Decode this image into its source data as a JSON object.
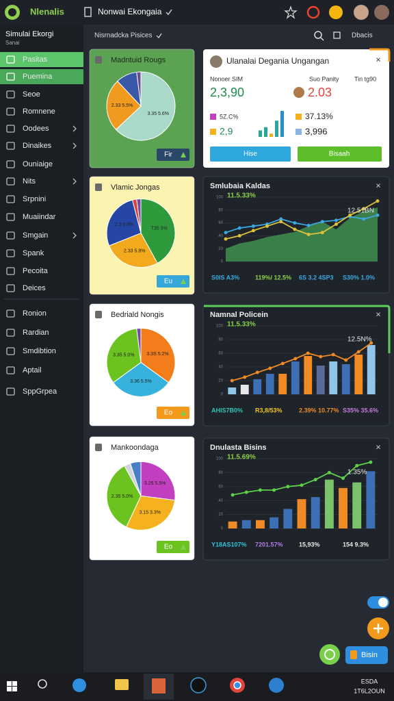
{
  "top_bar": {
    "logo": "Nlenalis",
    "title": "Nonwai Ekongaia"
  },
  "sidebar": {
    "title": "Simulai Ekorgi",
    "subtitle": "Sanai",
    "items": [
      {
        "label": "Pasitas",
        "active": true
      },
      {
        "label": "Puemina",
        "active": true
      },
      {
        "label": "Seoe"
      },
      {
        "label": "Romnene"
      },
      {
        "label": "Oodees",
        "chevron": true
      },
      {
        "label": "Dinaikes",
        "chevron": true
      },
      {
        "label": "Ouniaige"
      },
      {
        "label": "Nits",
        "chevron": true
      },
      {
        "label": "Srpnini"
      },
      {
        "label": "Muaiindar"
      },
      {
        "label": "Smgain",
        "chevron": true
      },
      {
        "label": "Spank"
      },
      {
        "label": "Pecoita"
      },
      {
        "label": "Deices"
      },
      {
        "label": "Ronion"
      },
      {
        "label": "Rardian"
      },
      {
        "label": "Smdibtion"
      },
      {
        "label": "Aptail"
      },
      {
        "label": "SppGrpea"
      }
    ]
  },
  "sub_header": {
    "breadcrumb": "Nisrnadcka  Pisices",
    "action": "Dbacis"
  },
  "pie_cards": [
    {
      "title": "Madntuid Rougs",
      "background": "#5ba352",
      "button": "Fir",
      "button_color": "#2b4768",
      "chart_data": {
        "type": "pie",
        "values": [
          63,
          25,
          10,
          2
        ],
        "colors": [
          "#a9d9c9",
          "#f09a1f",
          "#3a58a8",
          "#6b4a9c"
        ],
        "labels": [
          "3.35 5.6%",
          "2.33 5.5%",
          null,
          null
        ]
      }
    },
    {
      "title": "Vlamic Jongas",
      "background": "#fbf3b0",
      "button": "Eu",
      "button_color": "#35a7d9",
      "chart_data": {
        "type": "pie",
        "values": [
          42,
          27,
          27,
          2,
          2
        ],
        "colors": [
          "#2e9a3c",
          "#f2a91e",
          "#2646a6",
          "#d9443a",
          "#7a4aa0"
        ],
        "labels": [
          "T35 5%",
          "2.33 5.8%",
          "2.3 5.9%",
          null,
          null
        ]
      }
    },
    {
      "title": "Bedriald Nongis",
      "background": "#ffffff",
      "button": "Eo",
      "button_color": "#f39a1c",
      "chart_data": {
        "type": "pie",
        "values": [
          35,
          30,
          33,
          2
        ],
        "colors": [
          "#f27d1a",
          "#37b2dc",
          "#6cc320",
          "#7a4aa0"
        ],
        "labels": [
          "3.3S 5.2%",
          "3.36 5.5%",
          "3.35 5.0%",
          null
        ]
      }
    },
    {
      "title": "Mankoondaga",
      "background": "#ffffff",
      "button": "Eo",
      "button_color": "#6cc320",
      "chart_data": {
        "type": "pie",
        "values": [
          27,
          30,
          35,
          3,
          5
        ],
        "colors": [
          "#c23fbf",
          "#f5b21e",
          "#6cc320",
          "#d0d7dc",
          "#4a7fc8"
        ],
        "labels": [
          "3.25 5.5%",
          "3.15 3.3%",
          "2.35 5.0%",
          null,
          null
        ]
      }
    }
  ],
  "kpi_card": {
    "title": "Ulanalai Degania Ungangan",
    "headers": [
      "Nonoer SIM",
      "Suo Panity",
      "Tin tg90"
    ],
    "main_values": [
      "2,3,90",
      "2.03"
    ],
    "stats": [
      "5Z.C%",
      "2,9",
      "37.13%",
      "3,996"
    ],
    "mini_chart": {
      "type": "bar",
      "values": [
        2,
        3,
        1,
        5,
        8
      ],
      "ylim": [
        0,
        8
      ],
      "colors": [
        "#2aa59a",
        "#2aa59a",
        "#f2a91e",
        "#2aa59a",
        "#2a8fc8"
      ]
    },
    "buttons": [
      "Hise",
      "Bisaah"
    ]
  },
  "line_cards": [
    {
      "title": "Smlubaia Kaldas",
      "chart_data": {
        "type": "line",
        "ylim": [
          0,
          100
        ],
        "yticks": [
          0,
          20,
          40,
          60,
          80,
          100
        ],
        "series": [
          {
            "type": "area",
            "color": "#3f8f4f",
            "values": [
              20,
              28,
              32,
              38,
              42,
              46,
              55,
              62,
              50,
              68,
              78,
              84
            ]
          },
          {
            "type": "line",
            "color": "#3ba7e0",
            "values": [
              45,
              52,
              55,
              58,
              66,
              60,
              56,
              62,
              64,
              70,
              66,
              72
            ]
          },
          {
            "type": "line",
            "color": "#d9c23a",
            "values": [
              35,
              40,
              48,
              55,
              62,
              50,
              42,
              45,
              58,
              72,
              82,
              94
            ]
          }
        ],
        "annotations": [
          {
            "text": "11.5.33%",
            "color": "#8ad04a"
          },
          {
            "text": "12.51BN",
            "color": "#e6e6e6"
          }
        ]
      },
      "footer": [
        {
          "text": "S0IS A3%",
          "color": "#3ba7e0"
        },
        {
          "text": "119%/ 12.5%",
          "color": "#8ad04a"
        },
        {
          "text": "6S 3.2 4SP3",
          "color": "#3ba7e0"
        },
        {
          "text": "S30% 1.0%",
          "color": "#3ba7e0"
        }
      ]
    },
    {
      "title": "Namnal Policein",
      "chart_data": {
        "type": "bar",
        "ylim": [
          0,
          100
        ],
        "yticks": [
          0,
          20,
          40,
          60,
          80,
          100
        ],
        "series": [
          {
            "type": "bar",
            "colors": [
              "#8ec5e8",
              "#e8e8e8",
              "#3d6fb5",
              "#3d6fb5",
              "#f08a24",
              "#3d6fb5",
              "#f08a24",
              "#5a6a9a",
              "#8ec5e8",
              "#3d6fb5",
              "#f08a24",
              "#8ec5e8"
            ],
            "values": [
              10,
              14,
              22,
              30,
              30,
              48,
              56,
              42,
              48,
              44,
              58,
              72
            ]
          },
          {
            "type": "line",
            "color": "#f08a24",
            "values": [
              20,
              25,
              32,
              38,
              45,
              52,
              60,
              55,
              58,
              50,
              62,
              75
            ]
          }
        ],
        "annotations": [
          {
            "text": "11.5.33%",
            "color": "#8ad04a"
          },
          {
            "text": "12.5N%",
            "color": "#e6e6e6"
          }
        ]
      },
      "footer": [
        {
          "text": "AHIS7B0%",
          "color": "#2ec4b6"
        },
        {
          "text": "R3,8/53%",
          "color": "#f2c41e"
        },
        {
          "text": "2.39% 10.77%",
          "color": "#f08a24"
        },
        {
          "text": "S35% 35.6%",
          "color": "#c37ad8"
        }
      ]
    },
    {
      "title": "Dnulasta Bisins",
      "chart_data": {
        "type": "bar",
        "ylim": [
          0,
          100
        ],
        "yticks": [
          0,
          20,
          40,
          60,
          80,
          100
        ],
        "series": [
          {
            "type": "bar",
            "colors": [
              "#f08a24",
              "#3d6fb5",
              "#f08a24",
              "#3d6fb5",
              "#3d6fb5",
              "#f08a24",
              "#3d6fb5",
              "#7ac36a",
              "#f08a24",
              "#7ac36a",
              "#3d6fb5"
            ],
            "values": [
              10,
              12,
              12,
              16,
              28,
              42,
              45,
              70,
              58,
              66,
              82
            ]
          },
          {
            "type": "line",
            "color": "#5fd04a",
            "values": [
              48,
              52,
              55,
              55,
              60,
              62,
              70,
              80,
              72,
              90,
              95
            ]
          }
        ],
        "annotations": [
          {
            "text": "11.5.69%",
            "color": "#8ad04a"
          },
          {
            "text": "1.35%",
            "color": "#e6e6e6"
          }
        ]
      },
      "footer": [
        {
          "text": "Y18AS107%",
          "color": "#2ec4d6"
        },
        {
          "text": "7201.57%",
          "color": "#b07ae0"
        },
        {
          "text": "15,93%",
          "color": "#e6e6e6"
        },
        {
          "text": "154 9.3%",
          "color": "#e6e6e6"
        }
      ]
    }
  ],
  "floating": {
    "button": "Bisin"
  },
  "taskbar": {
    "clock": [
      "ESDA",
      "1T6L2OUN"
    ]
  }
}
